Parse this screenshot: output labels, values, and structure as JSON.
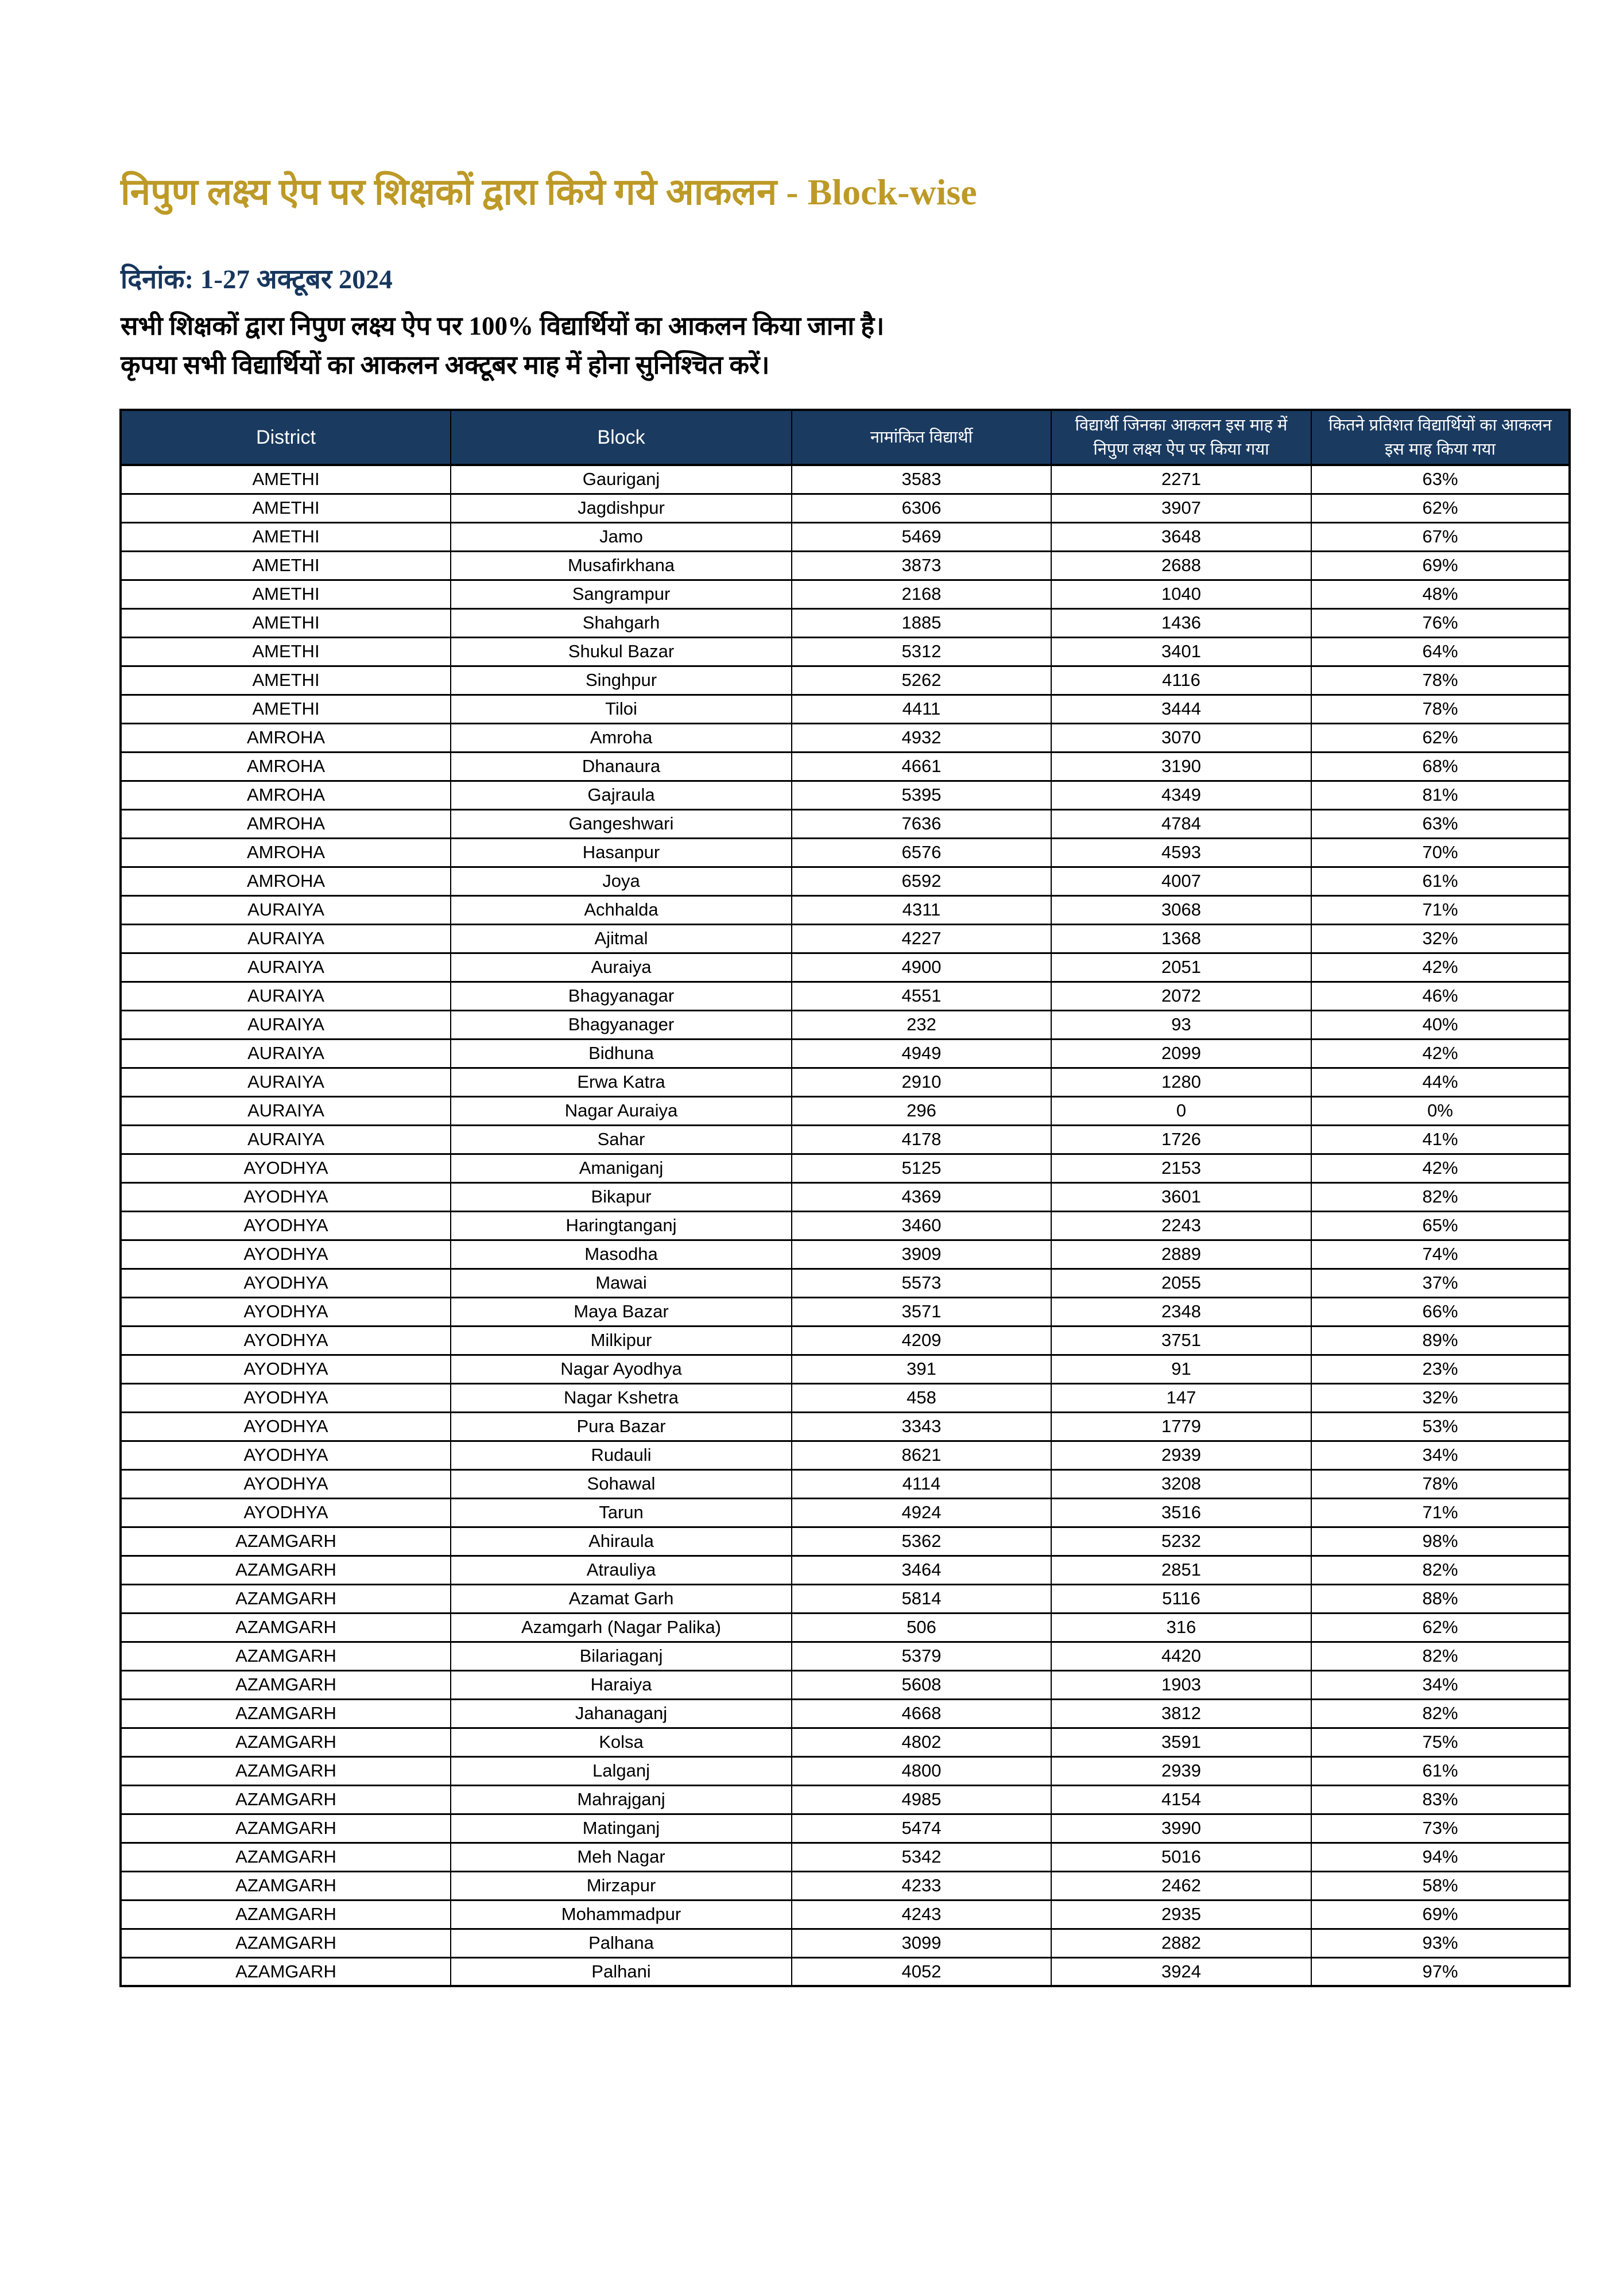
{
  "page": {
    "title": "निपुण लक्ष्य ऐप पर शिक्षकों द्वारा किये गये आकलन - Block-wise",
    "date_line": "दिनांक: 1-27 अक्टूबर 2024",
    "note_line1": "सभी शिक्षकों द्वारा निपुण लक्ष्य ऐप पर 100% विद्यार्थियों का आकलन किया जाना है।",
    "note_line2": "कृपया सभी विद्यार्थियों का आकलन अक्टूबर माह में होना सुनिश्चित करें।"
  },
  "colors": {
    "title_gold": "#BD9A27",
    "date_navy": "#17365D",
    "header_bg": "#1A3A60",
    "band_yellow": "#FFE699",
    "band_red": "#ED999B",
    "band_green": "#B5D6A7"
  },
  "table": {
    "headers": [
      "District",
      "Block",
      "नामांकित विद्यार्थी",
      "विद्यार्थी जिनका आकलन इस माह में निपुण लक्ष्य ऐप पर किया गया",
      "कितने प्रतिशत विद्यार्थियों का आकलन इस माह किया गया"
    ],
    "rows": [
      {
        "district": "AMETHI",
        "block": "Gauriganj",
        "enrolled": "3583",
        "assessed": "2271",
        "percent": "63%",
        "band": "yellow"
      },
      {
        "district": "AMETHI",
        "block": "Jagdishpur",
        "enrolled": "6306",
        "assessed": "3907",
        "percent": "62%",
        "band": "yellow"
      },
      {
        "district": "AMETHI",
        "block": "Jamo",
        "enrolled": "5469",
        "assessed": "3648",
        "percent": "67%",
        "band": "yellow"
      },
      {
        "district": "AMETHI",
        "block": "Musafirkhana",
        "enrolled": "3873",
        "assessed": "2688",
        "percent": "69%",
        "band": "yellow"
      },
      {
        "district": "AMETHI",
        "block": "Sangrampur",
        "enrolled": "2168",
        "assessed": "1040",
        "percent": "48%",
        "band": "red"
      },
      {
        "district": "AMETHI",
        "block": "Shahgarh",
        "enrolled": "1885",
        "assessed": "1436",
        "percent": "76%",
        "band": "yellow"
      },
      {
        "district": "AMETHI",
        "block": "Shukul Bazar",
        "enrolled": "5312",
        "assessed": "3401",
        "percent": "64%",
        "band": "yellow"
      },
      {
        "district": "AMETHI",
        "block": "Singhpur",
        "enrolled": "5262",
        "assessed": "4116",
        "percent": "78%",
        "band": "yellow"
      },
      {
        "district": "AMETHI",
        "block": "Tiloi",
        "enrolled": "4411",
        "assessed": "3444",
        "percent": "78%",
        "band": "yellow"
      },
      {
        "district": "AMROHA",
        "block": "Amroha",
        "enrolled": "4932",
        "assessed": "3070",
        "percent": "62%",
        "band": "yellow"
      },
      {
        "district": "AMROHA",
        "block": "Dhanaura",
        "enrolled": "4661",
        "assessed": "3190",
        "percent": "68%",
        "band": "yellow"
      },
      {
        "district": "AMROHA",
        "block": "Gajraula",
        "enrolled": "5395",
        "assessed": "4349",
        "percent": "81%",
        "band": "green"
      },
      {
        "district": "AMROHA",
        "block": "Gangeshwari",
        "enrolled": "7636",
        "assessed": "4784",
        "percent": "63%",
        "band": "yellow"
      },
      {
        "district": "AMROHA",
        "block": "Hasanpur",
        "enrolled": "6576",
        "assessed": "4593",
        "percent": "70%",
        "band": "yellow"
      },
      {
        "district": "AMROHA",
        "block": "Joya",
        "enrolled": "6592",
        "assessed": "4007",
        "percent": "61%",
        "band": "yellow"
      },
      {
        "district": "AURAIYA",
        "block": "Achhalda",
        "enrolled": "4311",
        "assessed": "3068",
        "percent": "71%",
        "band": "yellow"
      },
      {
        "district": "AURAIYA",
        "block": "Ajitmal",
        "enrolled": "4227",
        "assessed": "1368",
        "percent": "32%",
        "band": "red"
      },
      {
        "district": "AURAIYA",
        "block": "Auraiya",
        "enrolled": "4900",
        "assessed": "2051",
        "percent": "42%",
        "band": "red"
      },
      {
        "district": "AURAIYA",
        "block": "Bhagyanagar",
        "enrolled": "4551",
        "assessed": "2072",
        "percent": "46%",
        "band": "red"
      },
      {
        "district": "AURAIYA",
        "block": "Bhagyanager",
        "enrolled": "232",
        "assessed": "93",
        "percent": "40%",
        "band": "red"
      },
      {
        "district": "AURAIYA",
        "block": "Bidhuna",
        "enrolled": "4949",
        "assessed": "2099",
        "percent": "42%",
        "band": "red"
      },
      {
        "district": "AURAIYA",
        "block": "Erwa Katra",
        "enrolled": "2910",
        "assessed": "1280",
        "percent": "44%",
        "band": "red"
      },
      {
        "district": "AURAIYA",
        "block": "Nagar Auraiya",
        "enrolled": "296",
        "assessed": "0",
        "percent": "0%",
        "band": "red"
      },
      {
        "district": "AURAIYA",
        "block": "Sahar",
        "enrolled": "4178",
        "assessed": "1726",
        "percent": "41%",
        "band": "red"
      },
      {
        "district": "AYODHYA",
        "block": "Amaniganj",
        "enrolled": "5125",
        "assessed": "2153",
        "percent": "42%",
        "band": "red"
      },
      {
        "district": "AYODHYA",
        "block": "Bikapur",
        "enrolled": "4369",
        "assessed": "3601",
        "percent": "82%",
        "band": "green"
      },
      {
        "district": "AYODHYA",
        "block": "Haringtanganj",
        "enrolled": "3460",
        "assessed": "2243",
        "percent": "65%",
        "band": "yellow"
      },
      {
        "district": "AYODHYA",
        "block": "Masodha",
        "enrolled": "3909",
        "assessed": "2889",
        "percent": "74%",
        "band": "yellow"
      },
      {
        "district": "AYODHYA",
        "block": "Mawai",
        "enrolled": "5573",
        "assessed": "2055",
        "percent": "37%",
        "band": "red"
      },
      {
        "district": "AYODHYA",
        "block": "Maya Bazar",
        "enrolled": "3571",
        "assessed": "2348",
        "percent": "66%",
        "band": "yellow"
      },
      {
        "district": "AYODHYA",
        "block": "Milkipur",
        "enrolled": "4209",
        "assessed": "3751",
        "percent": "89%",
        "band": "green"
      },
      {
        "district": "AYODHYA",
        "block": "Nagar Ayodhya",
        "enrolled": "391",
        "assessed": "91",
        "percent": "23%",
        "band": "red"
      },
      {
        "district": "AYODHYA",
        "block": "Nagar Kshetra",
        "enrolled": "458",
        "assessed": "147",
        "percent": "32%",
        "band": "red"
      },
      {
        "district": "AYODHYA",
        "block": "Pura Bazar",
        "enrolled": "3343",
        "assessed": "1779",
        "percent": "53%",
        "band": "yellow"
      },
      {
        "district": "AYODHYA",
        "block": "Rudauli",
        "enrolled": "8621",
        "assessed": "2939",
        "percent": "34%",
        "band": "red"
      },
      {
        "district": "AYODHYA",
        "block": "Sohawal",
        "enrolled": "4114",
        "assessed": "3208",
        "percent": "78%",
        "band": "yellow"
      },
      {
        "district": "AYODHYA",
        "block": "Tarun",
        "enrolled": "4924",
        "assessed": "3516",
        "percent": "71%",
        "band": "yellow"
      },
      {
        "district": "AZAMGARH",
        "block": "Ahiraula",
        "enrolled": "5362",
        "assessed": "5232",
        "percent": "98%",
        "band": "green"
      },
      {
        "district": "AZAMGARH",
        "block": "Atrauliya",
        "enrolled": "3464",
        "assessed": "2851",
        "percent": "82%",
        "band": "green"
      },
      {
        "district": "AZAMGARH",
        "block": "Azamat Garh",
        "enrolled": "5814",
        "assessed": "5116",
        "percent": "88%",
        "band": "green"
      },
      {
        "district": "AZAMGARH",
        "block": "Azamgarh (Nagar Palika)",
        "enrolled": "506",
        "assessed": "316",
        "percent": "62%",
        "band": "yellow"
      },
      {
        "district": "AZAMGARH",
        "block": "Bilariaganj",
        "enrolled": "5379",
        "assessed": "4420",
        "percent": "82%",
        "band": "green"
      },
      {
        "district": "AZAMGARH",
        "block": "Haraiya",
        "enrolled": "5608",
        "assessed": "1903",
        "percent": "34%",
        "band": "red"
      },
      {
        "district": "AZAMGARH",
        "block": "Jahanaganj",
        "enrolled": "4668",
        "assessed": "3812",
        "percent": "82%",
        "band": "green"
      },
      {
        "district": "AZAMGARH",
        "block": "Kolsa",
        "enrolled": "4802",
        "assessed": "3591",
        "percent": "75%",
        "band": "yellow"
      },
      {
        "district": "AZAMGARH",
        "block": "Lalganj",
        "enrolled": "4800",
        "assessed": "2939",
        "percent": "61%",
        "band": "yellow"
      },
      {
        "district": "AZAMGARH",
        "block": "Mahrajganj",
        "enrolled": "4985",
        "assessed": "4154",
        "percent": "83%",
        "band": "green"
      },
      {
        "district": "AZAMGARH",
        "block": "Matinganj",
        "enrolled": "5474",
        "assessed": "3990",
        "percent": "73%",
        "band": "yellow"
      },
      {
        "district": "AZAMGARH",
        "block": "Meh Nagar",
        "enrolled": "5342",
        "assessed": "5016",
        "percent": "94%",
        "band": "green"
      },
      {
        "district": "AZAMGARH",
        "block": "Mirzapur",
        "enrolled": "4233",
        "assessed": "2462",
        "percent": "58%",
        "band": "yellow"
      },
      {
        "district": "AZAMGARH",
        "block": "Mohammadpur",
        "enrolled": "4243",
        "assessed": "2935",
        "percent": "69%",
        "band": "yellow"
      },
      {
        "district": "AZAMGARH",
        "block": "Palhana",
        "enrolled": "3099",
        "assessed": "2882",
        "percent": "93%",
        "band": "green"
      },
      {
        "district": "AZAMGARH",
        "block": "Palhani",
        "enrolled": "4052",
        "assessed": "3924",
        "percent": "97%",
        "band": "green"
      }
    ]
  }
}
